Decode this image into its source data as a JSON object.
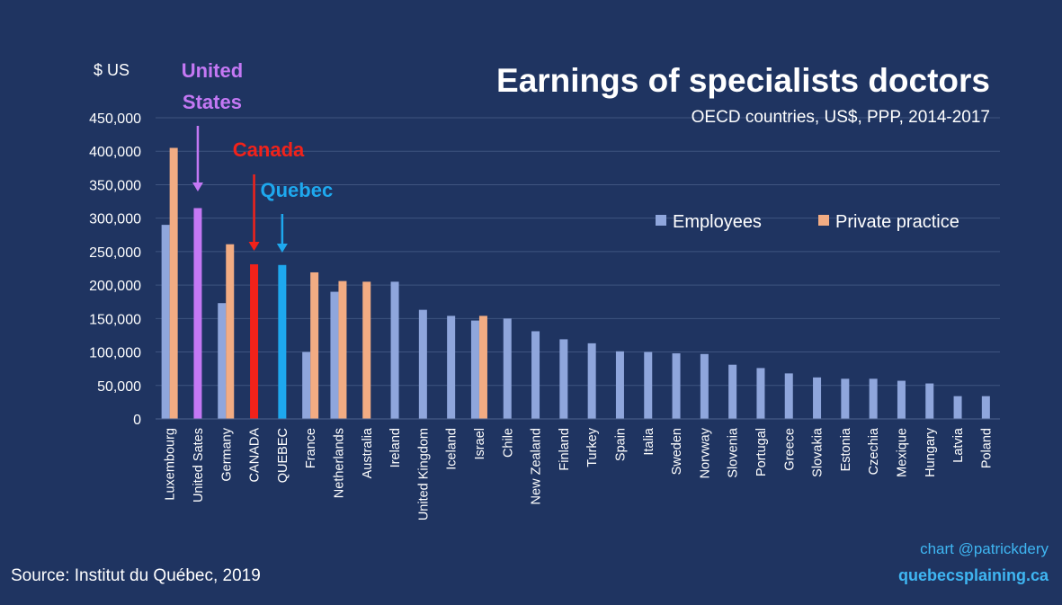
{
  "colors": {
    "background": "#1f3461",
    "employees": "#8fa6dc",
    "private": "#f2ac83",
    "usa": "#c478f4",
    "canada": "#f2221a",
    "quebec": "#1ea8ee",
    "grid": "#3f5480",
    "credit": "#3fb6f2"
  },
  "chart_data": {
    "type": "bar",
    "title": "Earnings of specialists doctors",
    "subtitle": "OECD countries, US$, PPP, 2014-2017",
    "ylabel": "$ US",
    "ylim": [
      0,
      450000
    ],
    "yticks": [
      "0",
      "50,000",
      "100,000",
      "150,000",
      "200,000",
      "250,000",
      "300,000",
      "350,000",
      "400,000",
      "450,000"
    ],
    "grid": true,
    "legend_position": "right",
    "categories": [
      "Luxembourg",
      "United Sates",
      "Germany",
      "CANADA",
      "QUEBEC",
      "France",
      "Netherlands",
      "Australia",
      "Ireland",
      "United Kingdom",
      "Iceland",
      "Israel",
      "Chile",
      "New Zealand",
      "Finland",
      "Turkey",
      "Spain",
      "Italia",
      "Sweden",
      "Norvway",
      "Slovenia",
      "Portugal",
      "Greece",
      "Slovakia",
      "Estonia",
      "Czechia",
      "Mexique",
      "Hungary",
      "Latvia",
      "Poland"
    ],
    "series": [
      {
        "name": "Employees",
        "values": [
          290000,
          null,
          173000,
          null,
          null,
          100000,
          190000,
          null,
          205000,
          163000,
          154000,
          147000,
          150000,
          131000,
          119000,
          113000,
          101000,
          100000,
          98000,
          97000,
          81000,
          76000,
          68000,
          62000,
          60000,
          60000,
          57000,
          53000,
          34000,
          34000
        ]
      },
      {
        "name": "Private practice",
        "values": [
          405000,
          null,
          261000,
          null,
          null,
          219000,
          206000,
          205000,
          null,
          null,
          null,
          154000,
          null,
          null,
          null,
          null,
          null,
          null,
          null,
          null,
          null,
          null,
          null,
          null,
          null,
          null,
          null,
          null,
          null,
          null
        ]
      }
    ],
    "highlights": [
      {
        "category": "United Sates",
        "label": "United States",
        "value": 315000,
        "color_key": "usa"
      },
      {
        "category": "CANADA",
        "label": "Canada",
        "value": 231000,
        "color_key": "canada"
      },
      {
        "category": "QUEBEC",
        "label": "Quebec",
        "value": 230000,
        "color_key": "quebec"
      }
    ]
  },
  "footer": {
    "source": "Source: Institut du Québec, 2019",
    "credit_line1": "chart @patrickdery",
    "credit_line2": "quebecsplaining.ca"
  }
}
